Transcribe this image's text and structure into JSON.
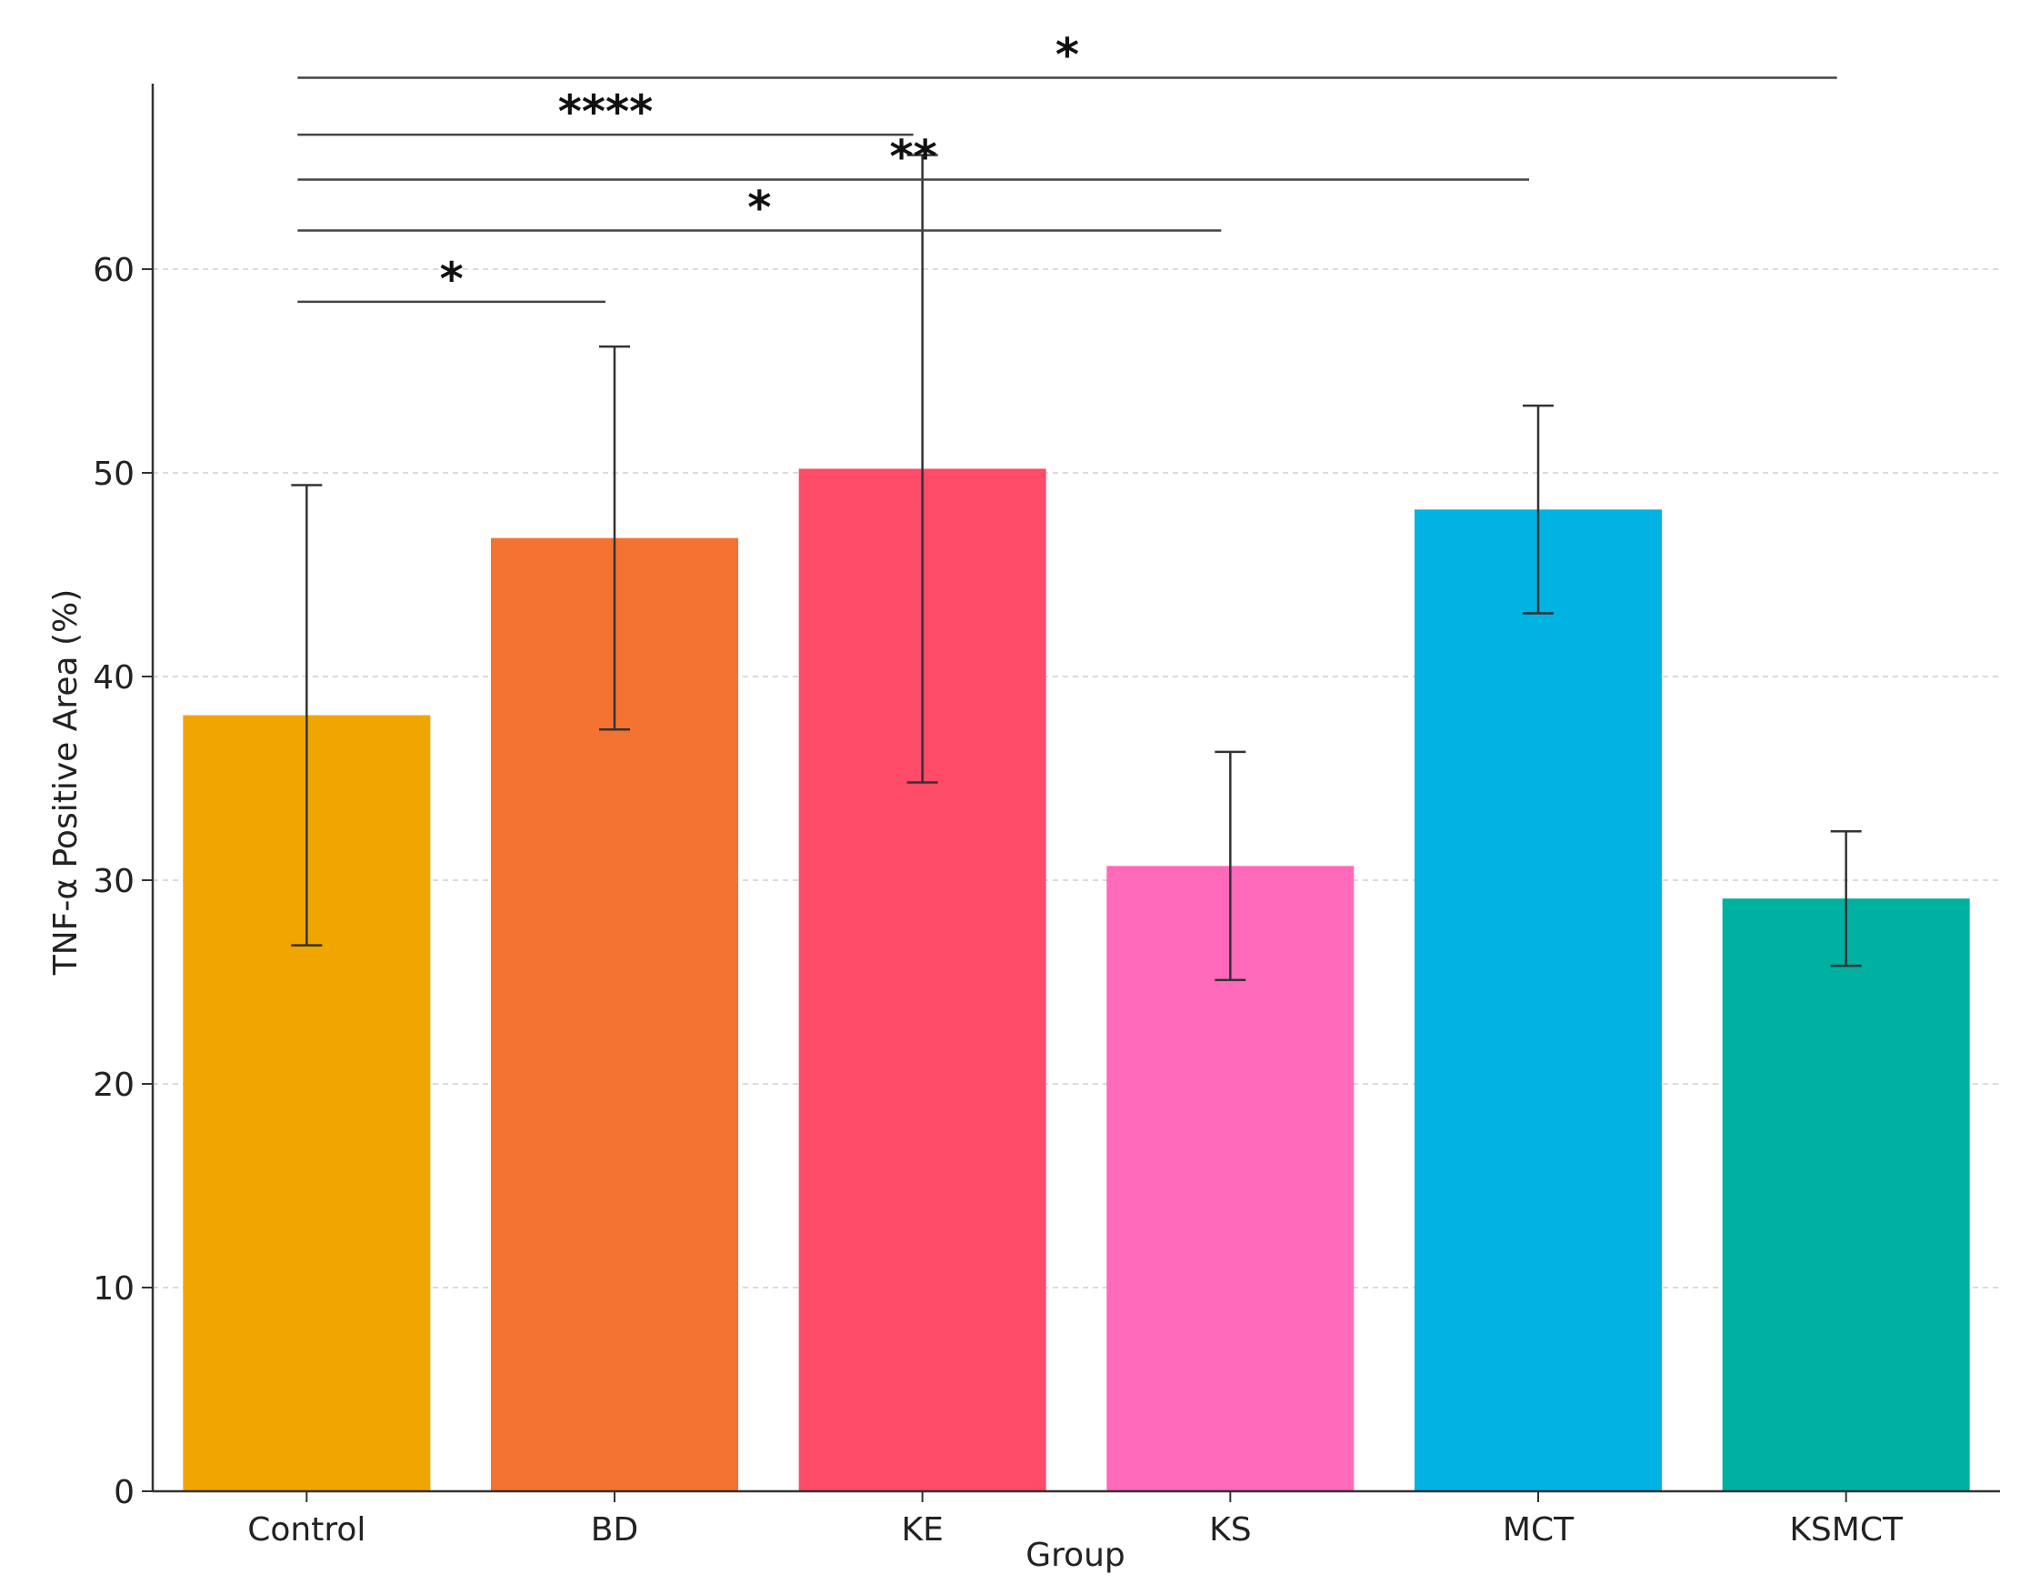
{
  "chart_data": {
    "type": "bar",
    "title": "",
    "xlabel": "Group",
    "ylabel": "TNF-α Positive Area (%)",
    "ylim": [
      0,
      69
    ],
    "yticks": [
      0,
      10,
      20,
      30,
      40,
      50,
      60
    ],
    "grid": "horizontal-dashed",
    "categories": [
      "Control",
      "BD",
      "KE",
      "KS",
      "MCT",
      "KSMCT"
    ],
    "values": [
      38.1,
      46.8,
      50.2,
      30.7,
      48.2,
      29.1
    ],
    "errors": [
      11.3,
      9.4,
      15.4,
      5.6,
      5.1,
      3.3
    ],
    "colors": [
      "#F0A500",
      "#F47232",
      "#FF4A68",
      "#FF69BA",
      "#00B3E3",
      "#00B0A0"
    ],
    "significance": [
      {
        "from": "Control",
        "to": "KSMCT",
        "label": "*",
        "y": 69.4
      },
      {
        "from": "Control",
        "to": "KE",
        "label": "****",
        "y": 66.6
      },
      {
        "from": "Control",
        "to": "MCT",
        "label": "**",
        "y": 64.4
      },
      {
        "from": "Control",
        "to": "KS",
        "label": "*",
        "y": 61.9
      },
      {
        "from": "Control",
        "to": "BD",
        "label": "*",
        "y": 58.4
      }
    ]
  }
}
